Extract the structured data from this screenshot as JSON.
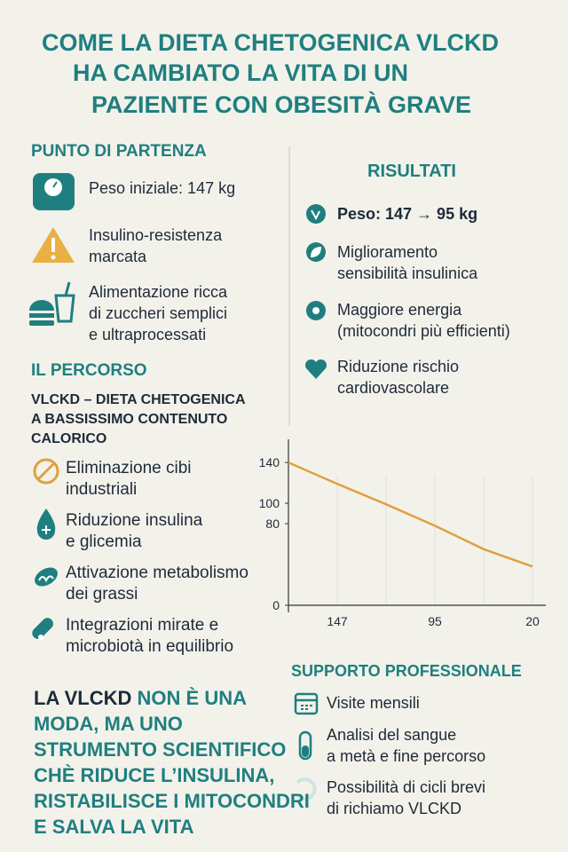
{
  "title": [
    "COME LA DIETA CHETOGENICA VLCKD",
    "HA CAMBIATO LA VITA DI UN",
    "PAZIENTE CON OBESITÀ GRAVE"
  ],
  "starting_point": {
    "heading": "PUNTO DI PARTENZA",
    "items": [
      [
        "Peso iniziale: 147 kg"
      ],
      [
        "Insulino-resistenza",
        "marcata"
      ],
      [
        "Alimentazione ricca",
        "di zuccheri semplici",
        "e ultraprocessati"
      ]
    ]
  },
  "path": {
    "heading": "IL PERCORSO",
    "subheading": [
      "VLCKD – DIETA CHETOGENICA",
      "A BASSISSIMO CONTENUTO",
      "CALORICO"
    ],
    "items": [
      [
        "Eliminazione cibi",
        "industriali"
      ],
      [
        "Riduzione insulina",
        "e glicemia"
      ],
      [
        "Attivazione metabolismo",
        "dei grassi"
      ],
      [
        "Integrazioni mirate e",
        "microbiotà in equilibrio"
      ]
    ]
  },
  "results": {
    "heading": "RISULTATI",
    "items": [
      [
        "Peso: 147 → 95 kg"
      ],
      [
        "Miglioramento",
        "sensibilità insulinica"
      ],
      [
        "Maggiore energia",
        "(mitocondri più efficienti)"
      ],
      [
        "Riduzione rischio",
        "cardiovascolare"
      ]
    ]
  },
  "chart_data": {
    "type": "line",
    "categories": [
      null,
      "147",
      null,
      "95",
      null,
      "20"
    ],
    "series": [
      {
        "color": "#e0a040",
        "values": [
          140,
          119,
          99,
          78,
          55,
          38
        ]
      }
    ],
    "ylim": [
      0,
      154
    ],
    "yticks": [
      0,
      80,
      100,
      140
    ]
  },
  "support": {
    "heading": "SUPPORTO PROFESSIONALE",
    "items": [
      [
        "Visite mensili"
      ],
      [
        "Analisi del sangue",
        "a metà e fine percorso"
      ],
      [
        "Possibilità di cicli brevi",
        "di richiamo VLCKD"
      ]
    ]
  },
  "closing": {
    "lead": "LA VLCKD",
    "lines": [
      "NON È UNA",
      "MODA, MA UNO",
      "STRUMENTO SCIENTIFICO",
      "CHÈ RIDUCE L’INSULINA,",
      "RISTABILISCE I MITOCONDRI",
      "E SALVA LA VITA"
    ]
  }
}
